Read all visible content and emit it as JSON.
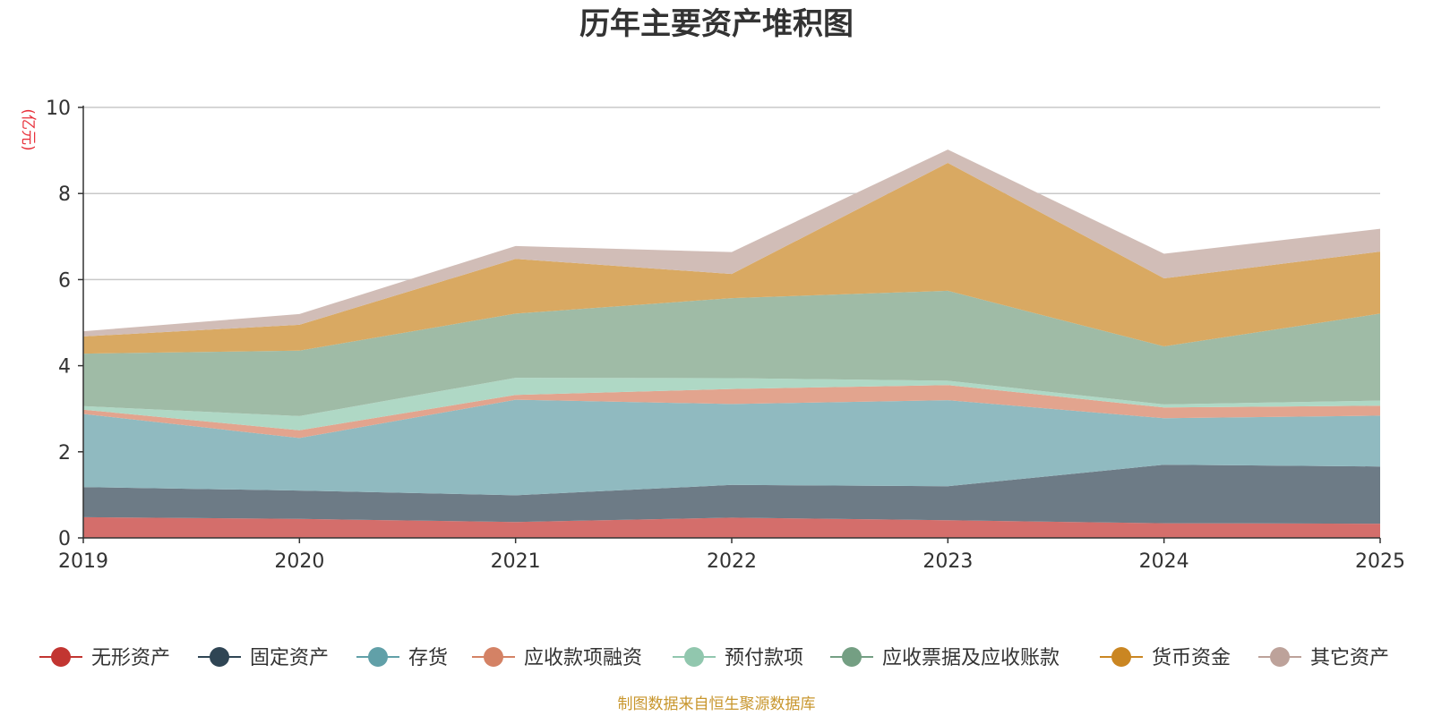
{
  "chart_data": {
    "type": "area",
    "stacked": true,
    "title": "历年主要资产堆积图",
    "ylabel": "(亿元)",
    "ylim": [
      0,
      10
    ],
    "yticks": [
      0,
      2,
      4,
      6,
      8,
      10
    ],
    "categories": [
      "2019",
      "2020",
      "2021",
      "2022",
      "2023",
      "2024",
      "2025"
    ],
    "series": [
      {
        "name": "无形资产",
        "color": "#c23531",
        "fill": "#d46e6b",
        "values": [
          0.48,
          0.44,
          0.37,
          0.47,
          0.41,
          0.34,
          0.33
        ]
      },
      {
        "name": "固定资产",
        "color": "#2f4554",
        "fill": "#6d7b86",
        "values": [
          0.7,
          0.66,
          0.62,
          0.76,
          0.79,
          1.36,
          1.33
        ]
      },
      {
        "name": "存货",
        "color": "#61a0a8",
        "fill": "#90bac0",
        "values": [
          1.7,
          1.22,
          2.22,
          1.88,
          2.0,
          1.08,
          1.18
        ]
      },
      {
        "name": "应收款项融资",
        "color": "#d48265",
        "fill": "#e2a48e",
        "values": [
          0.1,
          0.18,
          0.11,
          0.35,
          0.35,
          0.25,
          0.23
        ]
      },
      {
        "name": "预付款项",
        "color": "#91c7ae",
        "fill": "#afd8c5",
        "values": [
          0.08,
          0.33,
          0.4,
          0.25,
          0.1,
          0.07,
          0.12
        ]
      },
      {
        "name": "应收票据及应收账款",
        "color": "#749f83",
        "fill": "#9fbba6",
        "values": [
          1.22,
          1.52,
          1.49,
          1.86,
          2.09,
          1.35,
          2.02
        ]
      },
      {
        "name": "货币资金",
        "color": "#ca8622",
        "fill": "#d9a962",
        "values": [
          0.4,
          0.6,
          1.27,
          0.56,
          2.97,
          1.58,
          1.44
        ]
      },
      {
        "name": "其它资产",
        "color": "#bda29a",
        "fill": "#d1bdb7",
        "values": [
          0.12,
          0.25,
          0.3,
          0.51,
          0.31,
          0.57,
          0.53
        ]
      }
    ],
    "legend_position": "bottom",
    "grid": true,
    "source_note": "制图数据来自恒生聚源数据库"
  }
}
